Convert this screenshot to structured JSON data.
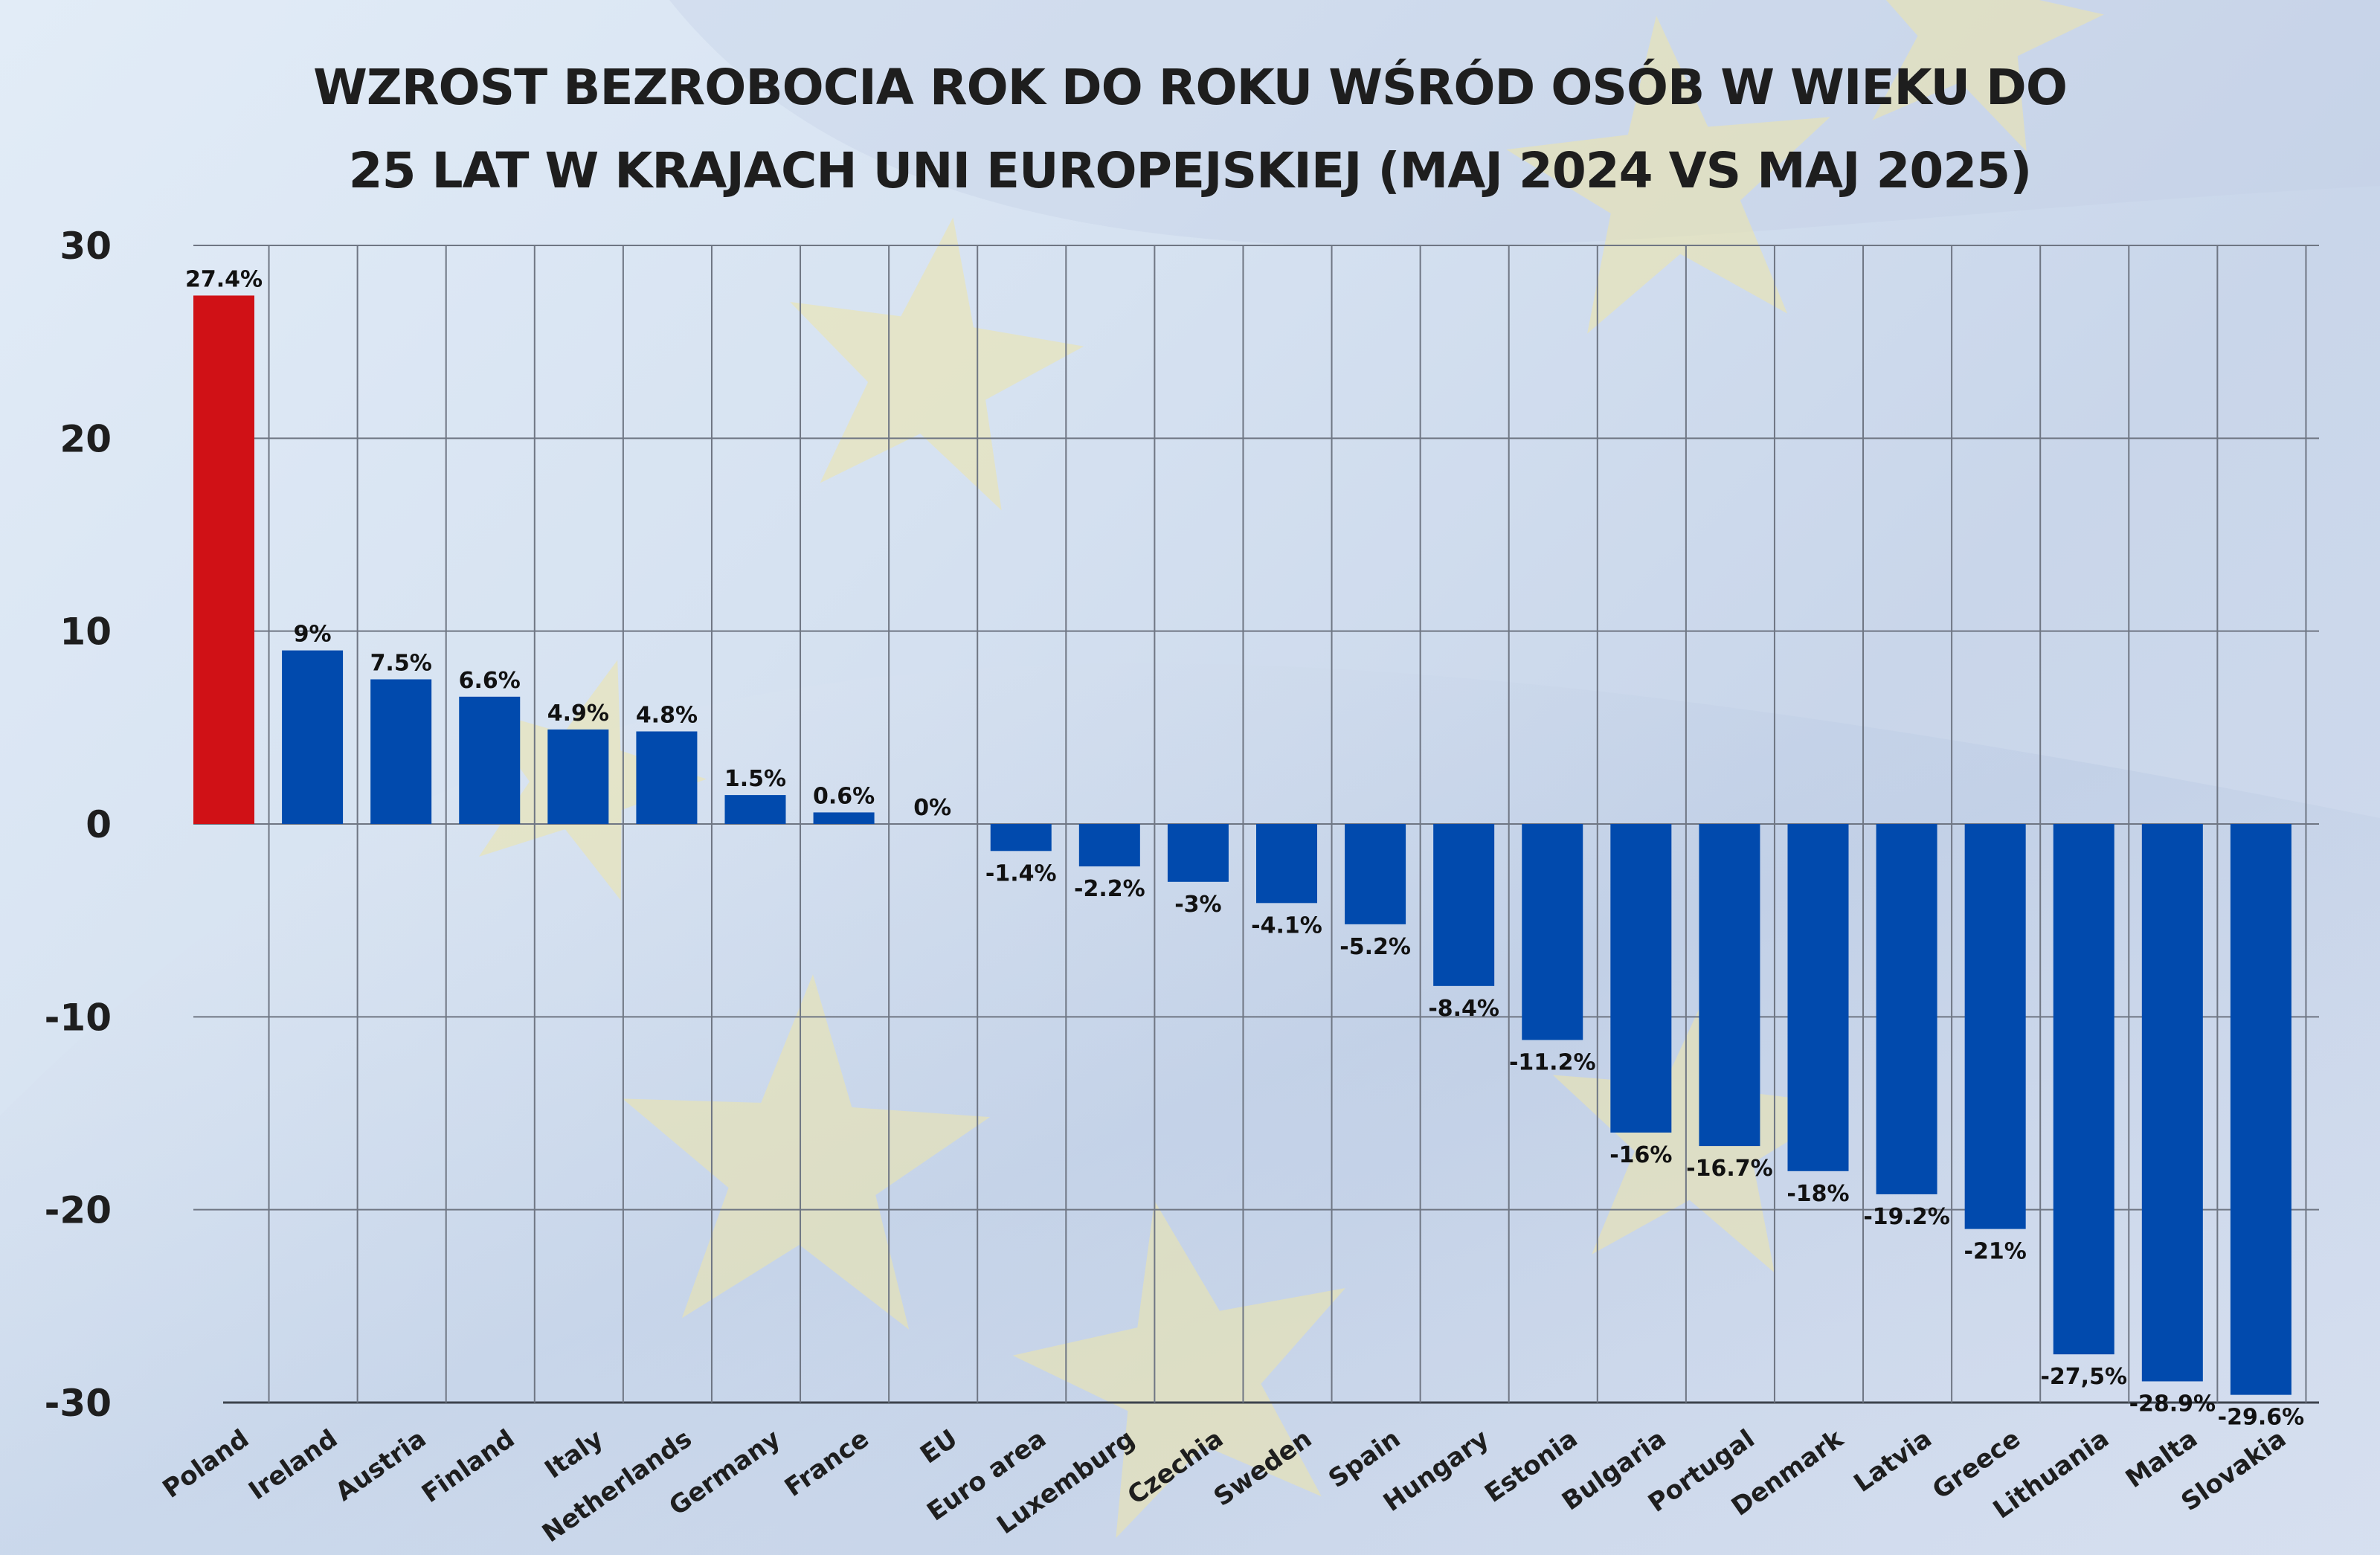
{
  "chart_data": {
    "type": "bar",
    "title_lines": [
      "WZROST BEZROBOCIA ROK DO ROKU WŚRÓD OSÓB W WIEKU DO",
      "25 LAT W KRAJACH UNI EUROPEJSKIEJ (MAJ 2024 VS MAJ 2025)"
    ],
    "xlabel": "",
    "ylabel": "",
    "ylim": [
      -30,
      30
    ],
    "yticks": [
      30,
      20,
      10,
      0,
      -10,
      -20,
      -30
    ],
    "grid": true,
    "legend": "none",
    "categories": [
      "Poland",
      "Ireland",
      "Austria",
      "Finland",
      "Italy",
      "Netherlands",
      "Germany",
      "France",
      "EU",
      "Euro area",
      "Luxemburg",
      "Czechia",
      "Sweden",
      "Spain",
      "Hungary",
      "Estonia",
      "Bulgaria",
      "Portugal",
      "Denmark",
      "Latvia",
      "Greece",
      "Lithuania",
      "Malta",
      "Slovakia"
    ],
    "values": [
      27.4,
      9,
      7.5,
      6.6,
      4.9,
      4.8,
      1.5,
      0.6,
      0,
      -1.4,
      -2.2,
      -3,
      -4.1,
      -5.2,
      -8.4,
      -11.2,
      -16,
      -16.7,
      -18,
      -19.2,
      -21,
      -27.5,
      -28.9,
      -29.6
    ],
    "data_labels": [
      "27.4%",
      "9%",
      "7.5%",
      "6.6%",
      "4.9%",
      "4.8%",
      "1.5%",
      "0.6%",
      "0%",
      "-1.4%",
      "-2.2%",
      "-3%",
      "-4.1%",
      "-5.2%",
      "-8.4%",
      "-11.2%",
      "-16%",
      "-16.7%",
      "-18%",
      "-19.2%",
      "-21%",
      "-27,5%",
      "-28.9%",
      "-29.6%"
    ],
    "colors": {
      "highlight": "#d01116",
      "bar": "#014aad",
      "grid": "#6f7683",
      "text": "#1e1e1e"
    },
    "highlight_category": "Poland"
  }
}
